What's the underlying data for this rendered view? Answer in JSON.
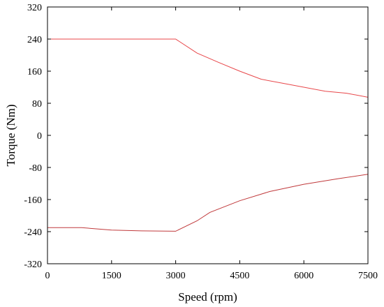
{
  "chart_data": {
    "type": "line",
    "xlabel": "Speed (rpm)",
    "ylabel": "Torque (Nm)",
    "xlim": [
      0,
      7500
    ],
    "ylim": [
      -320,
      320
    ],
    "x_ticks": [
      0,
      1500,
      3000,
      4500,
      6000,
      7500
    ],
    "y_ticks": [
      -320,
      -240,
      -160,
      -80,
      0,
      80,
      160,
      240,
      320
    ],
    "x_tick_labels": [
      "0",
      "1500",
      "3000",
      "4500",
      "6000",
      "7500"
    ],
    "y_tick_labels": [
      "-320",
      "-240",
      "-160",
      "-80",
      "0",
      "80",
      "160",
      "240",
      "320"
    ],
    "grid": false,
    "series": [
      {
        "color": "#e8474a",
        "x": [
          0,
          3000,
          3500,
          4000,
          4500,
          5000,
          5500,
          6000,
          6500,
          7000,
          7500
        ],
        "y": [
          240,
          240,
          205,
          182,
          160,
          140,
          130,
          120,
          110,
          105,
          95
        ]
      },
      {
        "color": "#c0393b",
        "x": [
          0,
          800,
          1500,
          2200,
          3000,
          3500,
          3800,
          4500,
          5200,
          6000,
          6800,
          7500
        ],
        "y": [
          -230,
          -230,
          -236,
          -238,
          -239,
          -213,
          -192,
          -163,
          -140,
          -122,
          -108,
          -97
        ]
      }
    ]
  }
}
